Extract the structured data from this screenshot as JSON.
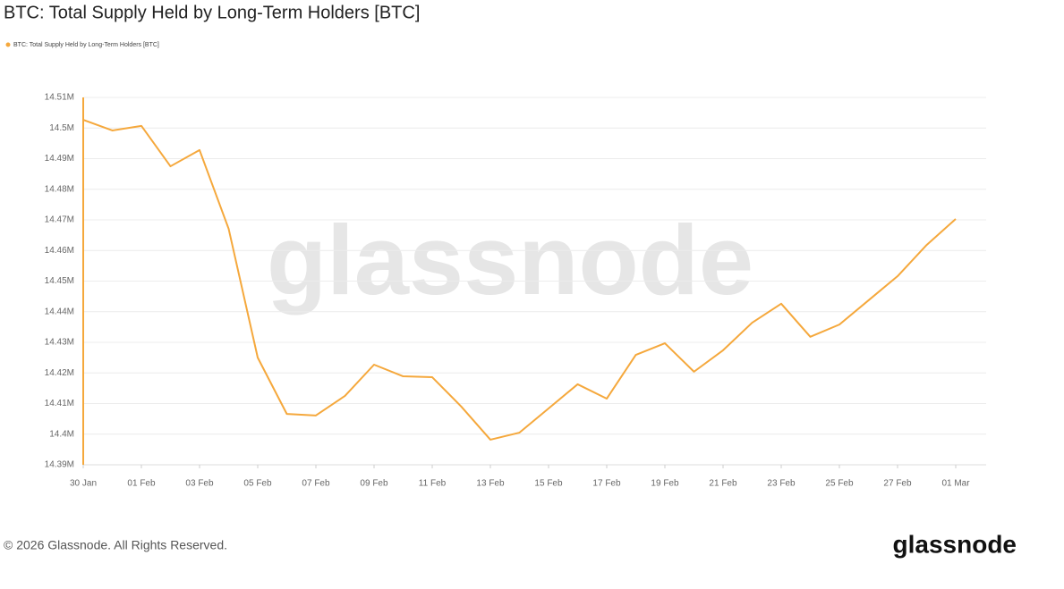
{
  "chart_data": {
    "type": "line",
    "title": "BTC: Total Supply Held by Long-Term Holders [BTC]",
    "categories": [
      "30 Jan",
      null,
      "01 Feb",
      null,
      "03 Feb",
      null,
      "05 Feb",
      null,
      "07 Feb",
      null,
      "09 Feb",
      null,
      "11 Feb",
      null,
      "13 Feb",
      null,
      "15 Feb",
      null,
      "17 Feb",
      null,
      "19 Feb",
      null,
      "21 Feb",
      null,
      "23 Feb",
      null,
      "25 Feb",
      null,
      "27 Feb",
      null,
      "01 Mar"
    ],
    "series": [
      {
        "name": "BTC: Total Supply Held by Long-Term Holders [BTC]",
        "color": "#f5a83c",
        "values": [
          14502700,
          14499200,
          14500700,
          14487500,
          14492800,
          14467100,
          14425000,
          14406600,
          14406100,
          14412500,
          14422700,
          14418900,
          14418600,
          14409000,
          14398200,
          14400500,
          14408400,
          14416300,
          14411600,
          14425900,
          14429700,
          14420400,
          14427400,
          14436400,
          14442600,
          14431800,
          14435800,
          14443700,
          14451600,
          14461800,
          14470300
        ]
      }
    ],
    "ylim": [
      14390000,
      14510000
    ],
    "yticks": [
      {
        "value": 14390000,
        "label": "14.39M"
      },
      {
        "value": 14400000,
        "label": "14.4M"
      },
      {
        "value": 14410000,
        "label": "14.41M"
      },
      {
        "value": 14420000,
        "label": "14.42M"
      },
      {
        "value": 14430000,
        "label": "14.43M"
      },
      {
        "value": 14440000,
        "label": "14.44M"
      },
      {
        "value": 14450000,
        "label": "14.45M"
      },
      {
        "value": 14460000,
        "label": "14.46M"
      },
      {
        "value": 14470000,
        "label": "14.47M"
      },
      {
        "value": 14480000,
        "label": "14.48M"
      },
      {
        "value": 14490000,
        "label": "14.49M"
      },
      {
        "value": 14500000,
        "label": "14.5M"
      },
      {
        "value": 14510000,
        "label": "14.51M"
      }
    ],
    "grid": true,
    "legend": "top-left",
    "watermark": "glassnode",
    "copyright": "© 2026 Glassnode. All Rights Reserved.",
    "logo": "glassnode"
  }
}
